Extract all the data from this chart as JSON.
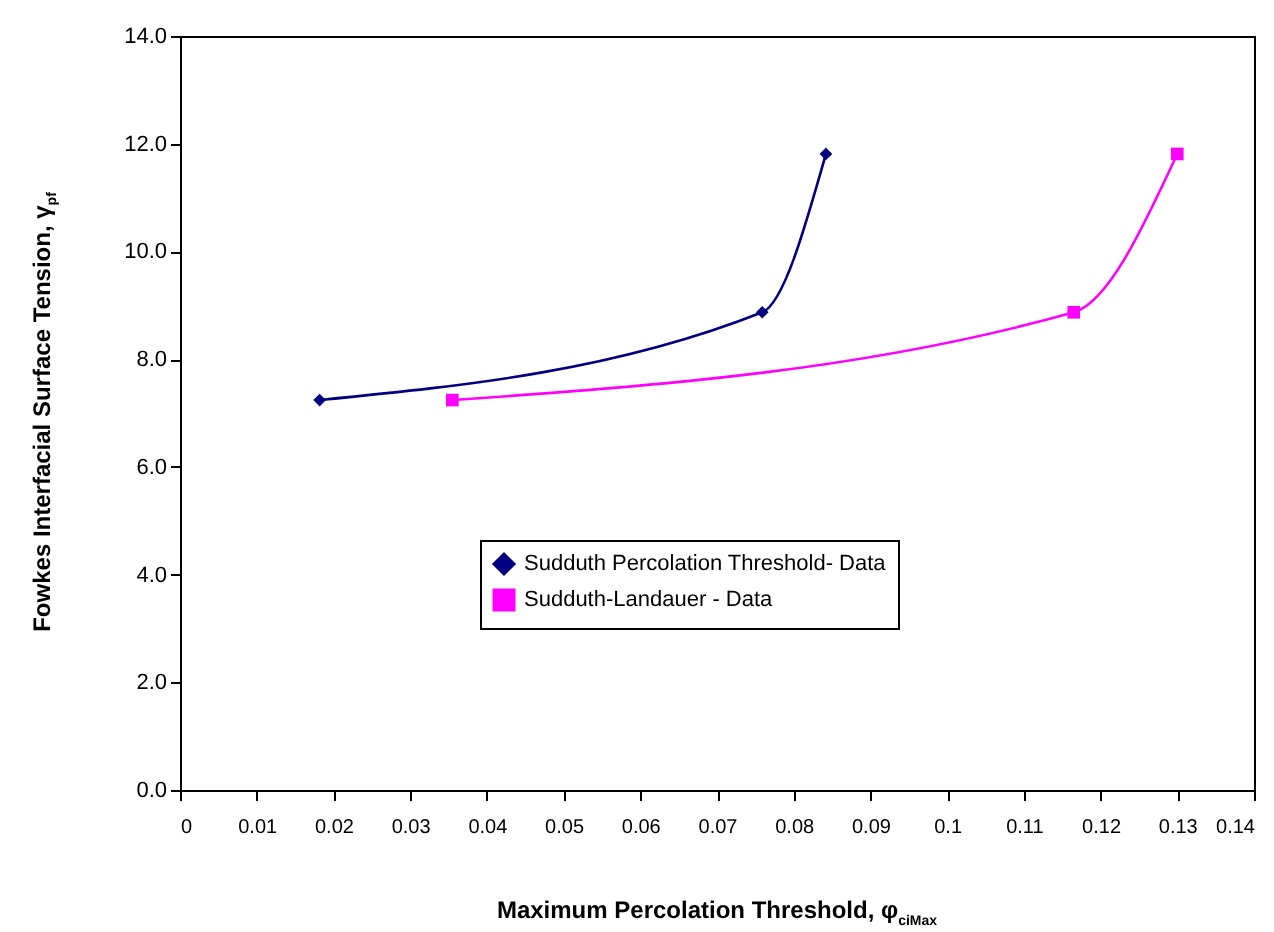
{
  "chart_data": {
    "type": "line",
    "xlabel": "Maximum Percolation Threshold, φ$_{ciMax}$",
    "ylabel": "Fowkes Interfacial Surface Tension, γ$_{pf}$",
    "series": [
      {
        "name": "Sudduth Percolation Threshold- Data",
        "color": "#000080",
        "marker": "diamond",
        "x": [
          0.0182,
          0.0759,
          0.0842
        ],
        "values": [
          7.24,
          8.87,
          11.81
        ]
      },
      {
        "name": "Sudduth-Landauer - Data",
        "color": "#ff00ff",
        "marker": "square",
        "x": [
          0.0355,
          0.1165,
          0.13
        ],
        "values": [
          7.24,
          8.87,
          11.81
        ]
      }
    ],
    "xlim": [
      0,
      0.14
    ],
    "xticks": [
      0,
      0.01,
      0.02,
      0.03,
      0.04,
      0.05,
      0.06,
      0.07,
      0.08,
      0.09,
      0.1,
      0.11,
      0.12,
      0.13,
      0.14
    ],
    "ylim": [
      0,
      14
    ],
    "yticks": [
      {
        "value": 0,
        "label": "0.0"
      },
      {
        "value": 2,
        "label": "2.0"
      },
      {
        "value": 4,
        "label": "4.0"
      },
      {
        "value": 6,
        "label": "6.0"
      },
      {
        "value": 8,
        "label": "8.0"
      },
      {
        "value": 10,
        "label": "10.0"
      },
      {
        "value": 12,
        "label": "12.0"
      },
      {
        "value": 14,
        "label": "14.0"
      }
    ],
    "grid": false,
    "legend": "center",
    "line_style": "solid"
  }
}
